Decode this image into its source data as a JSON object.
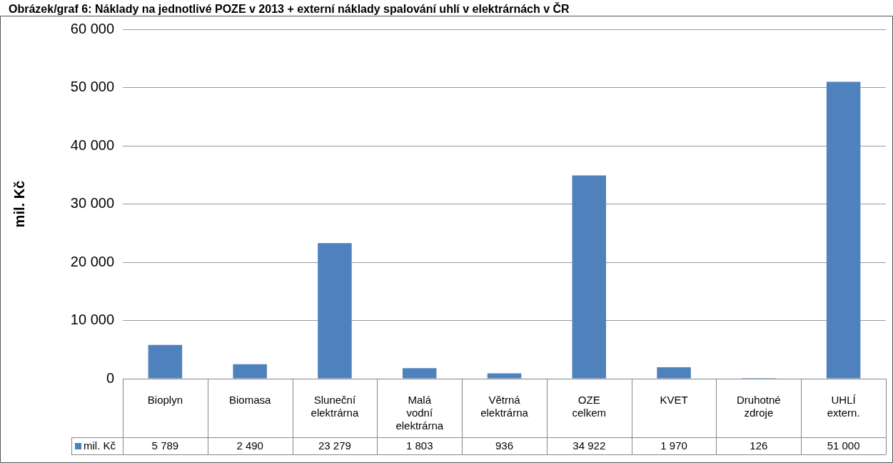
{
  "chart_data": {
    "type": "bar",
    "title": "Obrázek/graf 6: Náklady na jednotlivé POZE v 2013 + externí náklady spalování uhlí v elektrárnách v ČR",
    "ylabel": "mil. Kč",
    "categories": [
      "Bioplyn",
      "Biomasa",
      "Sluneční elektrárna",
      "Malá vodní elektrárna",
      "Větrná elektrárna",
      "OZE celkem",
      "KVET",
      "Druhotné zdroje",
      "UHLÍ extern."
    ],
    "series": [
      {
        "name": "mil. Kč",
        "color": "#4f81bd",
        "values": [
          5789,
          2490,
          23279,
          1803,
          936,
          34922,
          1970,
          126,
          51000
        ]
      }
    ],
    "ylim": [
      0,
      60000
    ],
    "yticks": [
      {
        "value": 0,
        "label": "0"
      },
      {
        "value": 10000,
        "label": "10 000"
      },
      {
        "value": 20000,
        "label": "20 000"
      },
      {
        "value": 30000,
        "label": "30 000"
      },
      {
        "value": 40000,
        "label": "40 000"
      },
      {
        "value": 50000,
        "label": "50 000"
      },
      {
        "value": 60000,
        "label": "60 000"
      }
    ],
    "grid": "y",
    "legend": "bottom left",
    "data_labels": true
  }
}
